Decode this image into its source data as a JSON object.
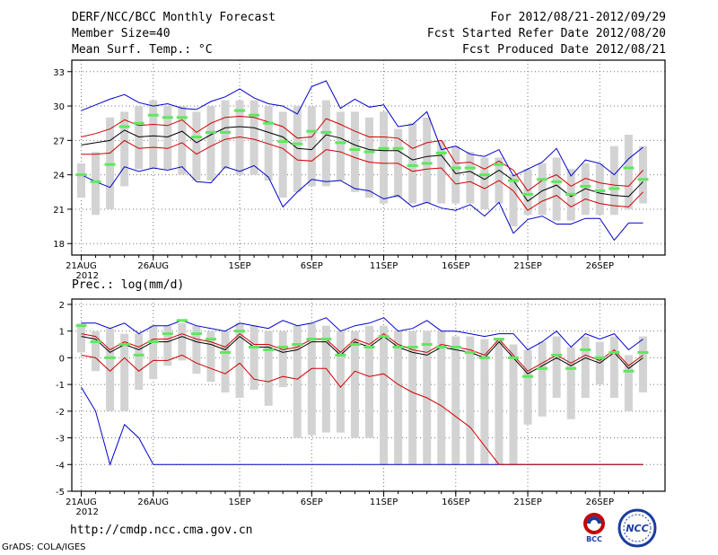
{
  "header": {
    "title": "DERF/NCC/BCC Monthly Forecast",
    "member_size": "Member Size=40",
    "variable1": "Mean Surf. Temp.: °C",
    "period": "For 2012/08/21-2012/09/29",
    "refer_date": "Fcst Started Refer Date 2012/08/20",
    "produced_date": "Fcst Produced Date 2012/08/21"
  },
  "footer": {
    "url": "http://cmdp.ncc.cma.gov.cn",
    "credit": "GrADS: COLA/IGES",
    "logo_bcc": "BCC",
    "logo_ncc": "NCC"
  },
  "colors": {
    "box": "#d3d3d3",
    "green": "#5ee85e",
    "red": "#d20000",
    "blue": "#0000cc",
    "black": "#000000",
    "grid": "#777777"
  },
  "chart_data": [
    {
      "type": "box",
      "title": "Mean Surf. Temp.: °C",
      "x_tick_labels": [
        "21AUG",
        "26AUG",
        "1SEP",
        "6SEP",
        "11SEP",
        "16SEP",
        "21SEP",
        "26SEP"
      ],
      "x_tick_days": [
        0,
        5,
        11,
        16,
        21,
        26,
        31,
        36
      ],
      "x_year_label": "2012",
      "ylim": [
        17,
        34
      ],
      "y_ticks": [
        18,
        21,
        24,
        27,
        30,
        33
      ],
      "grid": true,
      "day_count": 40,
      "series": {
        "ensemble_mean": [
          26.6,
          26.8,
          27.0,
          27.9,
          27.3,
          27.4,
          27.3,
          27.8,
          26.8,
          27.5,
          28.1,
          28.2,
          28.1,
          27.7,
          27.3,
          26.3,
          26.2,
          27.5,
          27.2,
          26.6,
          26.2,
          26.1,
          26.1,
          25.3,
          25.6,
          25.7,
          24.1,
          24.3,
          23.6,
          24.4,
          23.5,
          21.7,
          22.6,
          23.1,
          22.1,
          22.8,
          22.4,
          22.2,
          22.1,
          23.4
        ],
        "ens_upper": [
          27.3,
          27.6,
          28.0,
          28.8,
          28.3,
          28.4,
          28.3,
          28.8,
          27.7,
          28.5,
          29.0,
          29.1,
          29.0,
          28.6,
          28.2,
          27.2,
          27.3,
          28.9,
          28.4,
          27.8,
          27.3,
          27.3,
          27.2,
          26.3,
          26.8,
          27.0,
          25.0,
          25.1,
          24.5,
          25.2,
          24.4,
          22.6,
          23.5,
          24.0,
          23.0,
          23.7,
          23.3,
          23.1,
          23.0,
          24.4
        ],
        "ens_lower": [
          25.8,
          25.8,
          25.9,
          27.0,
          26.3,
          26.4,
          26.3,
          26.8,
          25.8,
          26.5,
          27.1,
          27.3,
          27.1,
          26.7,
          26.3,
          25.3,
          25.2,
          26.2,
          26.0,
          25.5,
          25.1,
          25.0,
          25.0,
          24.3,
          24.5,
          24.6,
          23.2,
          23.4,
          22.8,
          23.5,
          22.6,
          20.9,
          21.7,
          22.2,
          21.2,
          21.9,
          21.5,
          21.3,
          21.2,
          22.5
        ],
        "max": [
          29.6,
          30.1,
          30.6,
          31.0,
          30.3,
          30.0,
          30.2,
          29.8,
          29.7,
          30.4,
          30.8,
          31.5,
          30.7,
          30.2,
          30.0,
          29.3,
          31.7,
          32.2,
          29.8,
          30.6,
          29.9,
          30.1,
          28.2,
          28.4,
          29.5,
          26.2,
          26.5,
          25.8,
          25.6,
          26.2,
          23.9,
          24.5,
          25.1,
          26.3,
          23.9,
          25.3,
          25.0,
          24.0,
          25.4,
          26.4
        ],
        "min": [
          24.0,
          23.4,
          22.9,
          24.7,
          24.3,
          24.6,
          24.4,
          24.7,
          23.4,
          23.3,
          24.7,
          24.3,
          24.8,
          23.8,
          21.2,
          22.5,
          23.6,
          23.4,
          23.5,
          22.8,
          22.6,
          21.9,
          22.2,
          21.2,
          21.6,
          21.1,
          20.9,
          21.4,
          20.4,
          21.6,
          18.9,
          20.1,
          20.4,
          19.7,
          19.7,
          20.2,
          20.2,
          18.3,
          19.8,
          19.8
        ],
        "box_high": [
          25.0,
          26.0,
          29.0,
          29.5,
          30.0,
          30.5,
          30.0,
          30.0,
          29.5,
          30.0,
          30.5,
          30.5,
          30.5,
          30.0,
          29.5,
          30.0,
          30.0,
          30.5,
          29.5,
          29.5,
          29.0,
          29.5,
          28.0,
          28.5,
          29.0,
          27.0,
          26.5,
          26.0,
          25.5,
          25.5,
          24.0,
          24.5,
          25.0,
          25.5,
          24.5,
          25.0,
          25.0,
          26.5,
          27.5,
          26.5
        ],
        "box_low": [
          22.0,
          20.5,
          21.0,
          23.0,
          24.5,
          24.5,
          24.5,
          24.0,
          23.5,
          23.5,
          24.5,
          24.0,
          24.0,
          23.5,
          22.0,
          22.5,
          23.0,
          23.0,
          23.5,
          22.5,
          22.0,
          21.5,
          22.0,
          21.5,
          21.5,
          21.5,
          21.5,
          21.5,
          21.0,
          21.5,
          19.5,
          20.5,
          20.5,
          20.0,
          20.0,
          20.5,
          20.5,
          20.5,
          21.0,
          21.5
        ],
        "observed": [
          24.0,
          23.4,
          24.9,
          28.2,
          28.5,
          29.2,
          29.0,
          29.0,
          27.3,
          27.7,
          27.7,
          29.6,
          29.2,
          28.5,
          26.9,
          26.7,
          27.8,
          27.7,
          26.8,
          26.2,
          26.0,
          26.3,
          26.3,
          24.8,
          25.0,
          25.9,
          24.6,
          24.6,
          24.0,
          24.9,
          23.5,
          22.3,
          23.6,
          23.4,
          22.3,
          23.0,
          22.6,
          22.8,
          24.6,
          23.6
        ]
      }
    },
    {
      "type": "box",
      "title": "Prec.: log(mm/d)",
      "x_tick_labels": [
        "21AUG",
        "26AUG",
        "1SEP",
        "6SEP",
        "11SEP",
        "16SEP",
        "21SEP",
        "26SEP"
      ],
      "x_tick_days": [
        0,
        5,
        11,
        16,
        21,
        26,
        31,
        36
      ],
      "x_year_label": "2012",
      "ylim": [
        -5,
        2.2
      ],
      "y_ticks": [
        -5,
        -4,
        -3,
        -2,
        -1,
        0,
        1,
        2
      ],
      "grid": true,
      "day_count": 40,
      "series": {
        "ensemble_mean": [
          0.8,
          0.7,
          0.2,
          0.5,
          0.3,
          0.6,
          0.6,
          0.8,
          0.6,
          0.5,
          0.3,
          0.8,
          0.4,
          0.4,
          0.2,
          0.3,
          0.6,
          0.6,
          0.1,
          0.6,
          0.4,
          0.8,
          0.4,
          0.2,
          0.1,
          0.4,
          0.3,
          0.2,
          0.0,
          0.6,
          0.0,
          -0.6,
          -0.3,
          0.0,
          -0.3,
          0.0,
          -0.2,
          0.2,
          -0.4,
          0.0
        ],
        "ens_upper": [
          0.9,
          0.8,
          0.3,
          0.6,
          0.4,
          0.7,
          0.7,
          0.9,
          0.7,
          0.6,
          0.4,
          0.9,
          0.5,
          0.5,
          0.3,
          0.4,
          0.7,
          0.7,
          0.2,
          0.7,
          0.5,
          0.9,
          0.5,
          0.3,
          0.2,
          0.5,
          0.4,
          0.3,
          0.1,
          0.7,
          0.1,
          -0.5,
          -0.2,
          0.1,
          -0.2,
          0.1,
          -0.1,
          0.3,
          -0.3,
          0.1
        ],
        "ens_lower": [
          0.1,
          0.0,
          -0.5,
          0.0,
          -0.5,
          -0.1,
          -0.1,
          0.1,
          -0.2,
          -0.4,
          -0.6,
          -0.2,
          -0.8,
          -0.9,
          -0.7,
          -0.8,
          -0.4,
          -0.4,
          -1.1,
          -0.5,
          -0.7,
          -0.6,
          -1.0,
          -1.3,
          -1.5,
          -1.8,
          -2.2,
          -2.6,
          -3.3,
          -4.0,
          -4.0,
          -4.0,
          -4.0,
          -4.0,
          -4.0,
          -4.0,
          -4.0,
          -4.0,
          -4.0,
          -4.0
        ],
        "max": [
          1.3,
          1.3,
          1.1,
          1.3,
          0.9,
          1.2,
          1.2,
          1.4,
          1.2,
          1.1,
          1.0,
          1.3,
          1.2,
          1.1,
          1.4,
          1.2,
          1.3,
          1.5,
          1.0,
          1.2,
          1.3,
          1.5,
          1.0,
          1.1,
          1.4,
          1.0,
          1.0,
          0.9,
          0.8,
          0.9,
          0.9,
          0.3,
          0.6,
          1.0,
          0.4,
          0.9,
          0.7,
          0.9,
          0.3,
          0.7
        ],
        "min": [
          -1.1,
          -2.0,
          -4.0,
          -2.5,
          -3.0,
          -4.0,
          -4.0,
          -4.0,
          -4.0,
          -4.0,
          -4.0,
          -4.0,
          -4.0,
          -4.0,
          -4.0,
          -4.0,
          -4.0,
          -4.0,
          -4.0,
          -4.0,
          -4.0,
          -4.0,
          -4.0,
          -4.0,
          -4.0,
          -4.0,
          -4.0,
          -4.0,
          -4.0,
          -4.0,
          -4.0,
          -4.0,
          -4.0,
          -4.0,
          -4.0,
          -4.0,
          -4.0,
          -4.0,
          -4.0,
          -4.0
        ],
        "box_high": [
          1.3,
          1.0,
          1.1,
          0.9,
          0.9,
          1.2,
          1.2,
          1.3,
          1.2,
          1.0,
          1.0,
          1.3,
          1.2,
          1.0,
          1.0,
          1.2,
          1.3,
          1.2,
          1.0,
          1.0,
          1.2,
          1.2,
          1.0,
          1.0,
          1.0,
          1.0,
          0.8,
          0.8,
          0.7,
          0.7,
          0.5,
          0.3,
          0.6,
          0.8,
          0.4,
          0.8,
          0.6,
          0.8,
          0.1,
          0.8
        ],
        "box_low": [
          0.2,
          -0.5,
          -2.0,
          -2.0,
          -1.2,
          -0.8,
          -0.3,
          -0.1,
          -0.6,
          -0.9,
          -1.3,
          -1.5,
          -1.2,
          -1.8,
          -1.1,
          -3.0,
          -2.9,
          -2.8,
          -2.8,
          -3.0,
          -3.0,
          -4.0,
          -4.0,
          -4.0,
          -4.0,
          -4.0,
          -4.0,
          -4.0,
          -4.0,
          -4.0,
          -4.0,
          -2.5,
          -2.2,
          -1.5,
          -2.3,
          -1.5,
          -1.0,
          -1.5,
          -2.0,
          -1.3
        ],
        "observed": [
          1.2,
          0.6,
          0.0,
          0.5,
          0.1,
          0.6,
          0.9,
          1.4,
          0.9,
          0.7,
          0.2,
          1.0,
          0.4,
          0.3,
          0.4,
          0.5,
          0.7,
          0.7,
          0.1,
          0.5,
          0.4,
          0.8,
          0.4,
          0.4,
          0.5,
          0.4,
          0.4,
          0.2,
          0.0,
          0.7,
          0.0,
          -0.7,
          -0.4,
          0.1,
          -0.4,
          0.3,
          0.0,
          0.2,
          -0.5,
          0.2
        ]
      }
    }
  ]
}
